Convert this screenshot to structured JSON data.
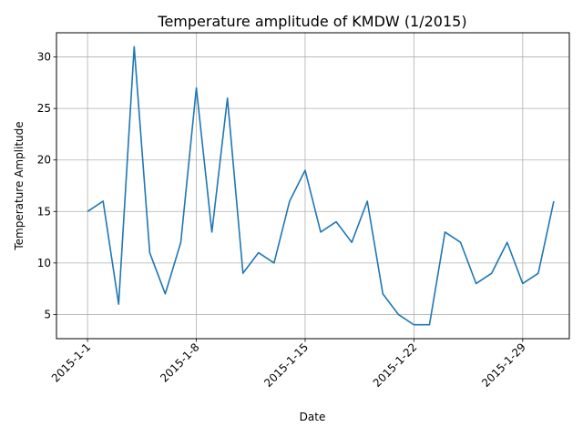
{
  "chart_data": {
    "type": "line",
    "title": "Temperature amplitude of KMDW (1/2015)",
    "xlabel": "Date",
    "ylabel": "Temperature Amplitude",
    "x": [
      "2015-01-01",
      "2015-01-02",
      "2015-01-03",
      "2015-01-04",
      "2015-01-05",
      "2015-01-06",
      "2015-01-07",
      "2015-01-08",
      "2015-01-09",
      "2015-01-10",
      "2015-01-11",
      "2015-01-12",
      "2015-01-13",
      "2015-01-14",
      "2015-01-15",
      "2015-01-16",
      "2015-01-17",
      "2015-01-18",
      "2015-01-19",
      "2015-01-20",
      "2015-01-21",
      "2015-01-22",
      "2015-01-23",
      "2015-01-24",
      "2015-01-25",
      "2015-01-26",
      "2015-01-27",
      "2015-01-28",
      "2015-01-29",
      "2015-01-30",
      "2015-01-31"
    ],
    "series": [
      {
        "values": [
          15,
          16,
          6,
          31,
          11,
          7,
          12,
          27,
          13,
          26,
          9,
          11,
          10,
          16,
          19,
          13,
          14,
          12,
          16,
          7,
          5,
          4,
          4,
          13,
          12,
          8,
          9,
          12,
          8,
          9,
          16
        ]
      }
    ],
    "xtick_labels": [
      "2015-1-1",
      "2015-1-8",
      "2015-1-15",
      "2015-1-22",
      "2015-1-29"
    ],
    "yticks": [
      5,
      10,
      15,
      20,
      25,
      30
    ],
    "xlim": [
      "2014-12-30",
      "2015-02-01"
    ],
    "ylim": [
      2.65,
      32.35
    ],
    "grid": true,
    "line_color": "#1f77b4"
  }
}
